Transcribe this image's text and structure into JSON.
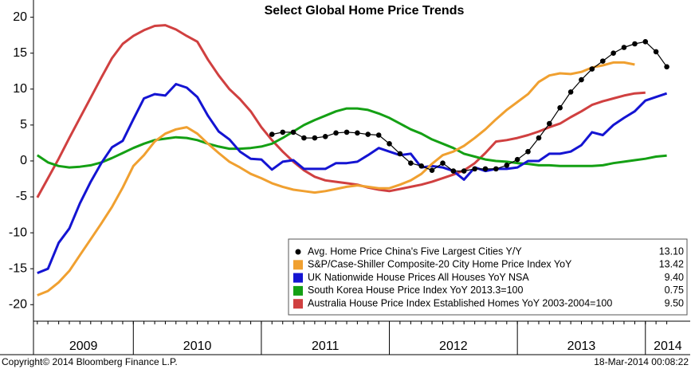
{
  "chart_data": {
    "type": "line",
    "title": "Select Global Home Price Trends",
    "footer_left": "Copyright© 2014 Bloomberg Finance L.P.",
    "footer_right": "18-Mar-2014 00:08:22",
    "x": [
      2009.25,
      2009.333,
      2009.417,
      2009.5,
      2009.583,
      2009.667,
      2009.75,
      2009.833,
      2009.917,
      2010,
      2010.083,
      2010.167,
      2010.25,
      2010.333,
      2010.417,
      2010.5,
      2010.583,
      2010.667,
      2010.75,
      2010.833,
      2010.917,
      2011,
      2011.083,
      2011.167,
      2011.25,
      2011.333,
      2011.417,
      2011.5,
      2011.583,
      2011.667,
      2011.75,
      2011.833,
      2011.917,
      2012,
      2012.083,
      2012.167,
      2012.25,
      2012.333,
      2012.417,
      2012.5,
      2012.583,
      2012.667,
      2012.75,
      2012.833,
      2012.917,
      2013,
      2013.083,
      2013.167,
      2013.25,
      2013.333,
      2013.417,
      2013.5,
      2013.583,
      2013.667,
      2013.75,
      2013.833,
      2013.917,
      2014,
      2014.083,
      2014.167
    ],
    "xlim": [
      2009.22,
      2014.35
    ],
    "xticks": [
      2009,
      2010,
      2011,
      2012,
      2013,
      2014
    ],
    "ylim": [
      -22.3,
      22.4
    ],
    "yticks": [
      20,
      15,
      10,
      5,
      0,
      -5,
      -10,
      -15,
      -20
    ],
    "grid": false,
    "legend": "lower right",
    "series": [
      {
        "name": "Avg. Home Price China's Five Largest Cities Y/Y",
        "color": "#000000",
        "marker": "dot",
        "last_value_label": "13.10",
        "values": [
          null,
          null,
          null,
          null,
          null,
          null,
          null,
          null,
          null,
          null,
          null,
          null,
          null,
          null,
          null,
          null,
          null,
          null,
          null,
          null,
          null,
          null,
          3.7,
          4,
          4,
          3.2,
          3.2,
          3.4,
          3.9,
          4,
          3.9,
          3.7,
          3.6,
          2.4,
          1,
          -0.3,
          -0.7,
          -1.3,
          -0.3,
          -1.4,
          -1.4,
          -1.1,
          -1.1,
          -1.1,
          -0.6,
          0.2,
          1.3,
          3.2,
          5.2,
          7.4,
          9.6,
          11.3,
          12.8,
          13.9,
          15,
          15.8,
          16.3,
          16.6,
          15.2,
          13.1
        ]
      },
      {
        "name": "S&P/Case-Shiller Composite-20 City Home Price Index YoY",
        "color": "#f0a030",
        "last_value_label": "13.42",
        "values": [
          -18.7,
          -18.1,
          -16.9,
          -15.3,
          -13.1,
          -10.9,
          -8.7,
          -6.4,
          -3.7,
          -0.7,
          0.8,
          2.7,
          3.8,
          4.4,
          4.7,
          3.8,
          2.4,
          1.1,
          -0.1,
          -0.9,
          -1.8,
          -2.4,
          -3.1,
          -3.6,
          -4,
          -4.2,
          -4.4,
          -4.2,
          -3.9,
          -3.6,
          -3.4,
          -3.6,
          -3.8,
          -3.8,
          -3.3,
          -2.7,
          -1.8,
          -0.4,
          0.8,
          1.3,
          2.1,
          3.2,
          4.4,
          5.8,
          7.1,
          8.2,
          9.3,
          11,
          11.9,
          12.2,
          12.1,
          12.4,
          13,
          13.3,
          13.7,
          13.7,
          13.42,
          null,
          null,
          null
        ]
      },
      {
        "name": "UK Nationwide House Prices All Houses YoY NSA",
        "color": "#1414d2",
        "last_value_label": "9.40",
        "values": [
          -15.6,
          -15,
          -11.4,
          -9.4,
          -5.9,
          -2.9,
          -0.3,
          1.9,
          2.8,
          5.8,
          8.7,
          9.3,
          9.1,
          10.7,
          10.2,
          8.9,
          6.3,
          4.1,
          3,
          1.3,
          0.3,
          0.2,
          -1.2,
          -0.1,
          0.1,
          -1.1,
          -1.1,
          -1.1,
          -0.3,
          -0.3,
          -0.1,
          0.8,
          1.8,
          1.3,
          0.8,
          1,
          -0.9,
          -0.7,
          -0.9,
          -1.4,
          -2.6,
          -0.9,
          -1.4,
          -1.1,
          -1.1,
          -0.9,
          0,
          0,
          1,
          1,
          1.3,
          2.2,
          4,
          3.6,
          5,
          6,
          6.9,
          8.4,
          8.9,
          9.4
        ]
      },
      {
        "name": "South Korea House Price Index YoY 2013.3=100",
        "color": "#14a014",
        "last_value_label": "0.75",
        "values": [
          0.8,
          -0.2,
          -0.7,
          -0.9,
          -0.8,
          -0.6,
          -0.2,
          0.4,
          1.1,
          1.8,
          2.4,
          2.9,
          3.1,
          3.3,
          3.2,
          2.9,
          2.4,
          2,
          1.7,
          1.7,
          1.8,
          2,
          2.4,
          3.2,
          4.1,
          5,
          5.7,
          6.3,
          6.9,
          7.3,
          7.3,
          7.1,
          6.6,
          6,
          5.2,
          4.4,
          3.8,
          3,
          2.4,
          1.8,
          1,
          0.6,
          0.2,
          0,
          -0.1,
          -0.3,
          -0.4,
          -0.6,
          -0.6,
          -0.7,
          -0.7,
          -0.7,
          -0.7,
          -0.6,
          -0.3,
          -0.1,
          0.1,
          0.3,
          0.6,
          0.75
        ]
      },
      {
        "name": "Australia House Price Index Established Homes YoY 2003-2004=100",
        "color": "#d04040",
        "last_value_label": "9.50",
        "values": [
          -5.1,
          -2.4,
          0.3,
          3.2,
          6,
          8.8,
          11.6,
          14.3,
          16.3,
          17.4,
          18.2,
          18.8,
          18.9,
          18.3,
          17.4,
          16.6,
          14.1,
          11.9,
          10,
          8.6,
          6.9,
          4.7,
          2.9,
          1.3,
          -0.1,
          -1.3,
          -2.2,
          -2.7,
          -2.9,
          -3.1,
          -3.3,
          -3.7,
          -4,
          -4.2,
          -3.9,
          -3.6,
          -3.3,
          -2.9,
          -2.4,
          -1.9,
          -1.3,
          -0.3,
          1.1,
          2.7,
          2.9,
          3.2,
          3.6,
          4.1,
          4.7,
          5.2,
          6.1,
          6.9,
          7.8,
          8.3,
          8.7,
          9.1,
          9.4,
          9.5,
          null,
          null
        ]
      }
    ]
  }
}
